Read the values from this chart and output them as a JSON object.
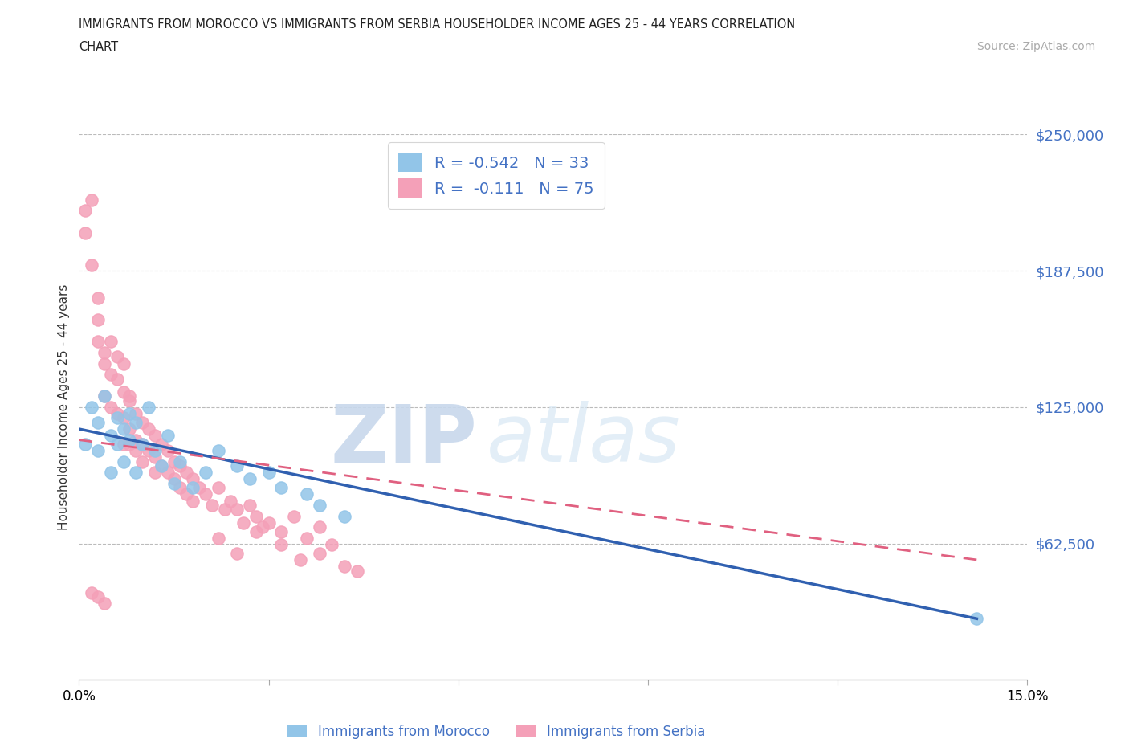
{
  "title_line1": "IMMIGRANTS FROM MOROCCO VS IMMIGRANTS FROM SERBIA HOUSEHOLDER INCOME AGES 25 - 44 YEARS CORRELATION",
  "title_line2": "CHART",
  "source_text": "Source: ZipAtlas.com",
  "ylabel": "Householder Income Ages 25 - 44 years",
  "xlim": [
    0,
    0.15
  ],
  "ylim": [
    0,
    250000
  ],
  "yticks": [
    0,
    62500,
    125000,
    187500,
    250000
  ],
  "ytick_labels": [
    "",
    "$62,500",
    "$125,000",
    "$187,500",
    "$250,000"
  ],
  "xticks": [
    0.0,
    0.03,
    0.06,
    0.09,
    0.12,
    0.15
  ],
  "xtick_labels": [
    "0.0%",
    "",
    "",
    "",
    "",
    "15.0%"
  ],
  "morocco_color": "#92c5e8",
  "serbia_color": "#f4a0b8",
  "morocco_line_color": "#3060b0",
  "serbia_line_color": "#e06080",
  "morocco_R": -0.542,
  "morocco_N": 33,
  "serbia_R": -0.111,
  "serbia_N": 75,
  "watermark_zip": "ZIP",
  "watermark_atlas": "atlas",
  "background_color": "#ffffff",
  "grid_color": "#bbbbbb",
  "ytick_color": "#4472c4",
  "morocco_line_x0": 0.0,
  "morocco_line_y0": 115000,
  "morocco_line_x1": 0.142,
  "morocco_line_y1": 28000,
  "serbia_line_x0": 0.0,
  "serbia_line_y0": 110000,
  "serbia_line_x1": 0.142,
  "serbia_line_y1": 55000,
  "morocco_scatter_x": [
    0.001,
    0.002,
    0.003,
    0.003,
    0.004,
    0.005,
    0.005,
    0.006,
    0.006,
    0.007,
    0.007,
    0.008,
    0.008,
    0.009,
    0.009,
    0.01,
    0.011,
    0.012,
    0.013,
    0.014,
    0.015,
    0.016,
    0.018,
    0.02,
    0.022,
    0.025,
    0.027,
    0.03,
    0.032,
    0.036,
    0.038,
    0.042,
    0.142
  ],
  "morocco_scatter_y": [
    108000,
    125000,
    118000,
    105000,
    130000,
    112000,
    95000,
    120000,
    108000,
    115000,
    100000,
    122000,
    110000,
    118000,
    95000,
    108000,
    125000,
    105000,
    98000,
    112000,
    90000,
    100000,
    88000,
    95000,
    105000,
    98000,
    92000,
    95000,
    88000,
    85000,
    80000,
    75000,
    28000
  ],
  "serbia_scatter_x": [
    0.001,
    0.001,
    0.002,
    0.002,
    0.003,
    0.003,
    0.003,
    0.004,
    0.004,
    0.004,
    0.005,
    0.005,
    0.005,
    0.006,
    0.006,
    0.006,
    0.007,
    0.007,
    0.007,
    0.007,
    0.008,
    0.008,
    0.008,
    0.008,
    0.009,
    0.009,
    0.009,
    0.01,
    0.01,
    0.01,
    0.011,
    0.011,
    0.012,
    0.012,
    0.012,
    0.013,
    0.013,
    0.014,
    0.014,
    0.015,
    0.015,
    0.016,
    0.016,
    0.017,
    0.017,
    0.018,
    0.018,
    0.019,
    0.02,
    0.021,
    0.022,
    0.023,
    0.024,
    0.025,
    0.026,
    0.027,
    0.028,
    0.029,
    0.03,
    0.032,
    0.034,
    0.036,
    0.038,
    0.04,
    0.022,
    0.025,
    0.028,
    0.032,
    0.035,
    0.038,
    0.042,
    0.044,
    0.002,
    0.003,
    0.004
  ],
  "serbia_scatter_y": [
    215000,
    205000,
    220000,
    190000,
    165000,
    155000,
    175000,
    145000,
    130000,
    150000,
    140000,
    125000,
    155000,
    138000,
    122000,
    148000,
    132000,
    120000,
    108000,
    145000,
    128000,
    115000,
    108000,
    130000,
    122000,
    110000,
    105000,
    118000,
    108000,
    100000,
    115000,
    105000,
    112000,
    102000,
    95000,
    108000,
    98000,
    105000,
    95000,
    100000,
    92000,
    98000,
    88000,
    95000,
    85000,
    92000,
    82000,
    88000,
    85000,
    80000,
    88000,
    78000,
    82000,
    78000,
    72000,
    80000,
    75000,
    70000,
    72000,
    68000,
    75000,
    65000,
    70000,
    62000,
    65000,
    58000,
    68000,
    62000,
    55000,
    58000,
    52000,
    50000,
    40000,
    38000,
    35000
  ]
}
